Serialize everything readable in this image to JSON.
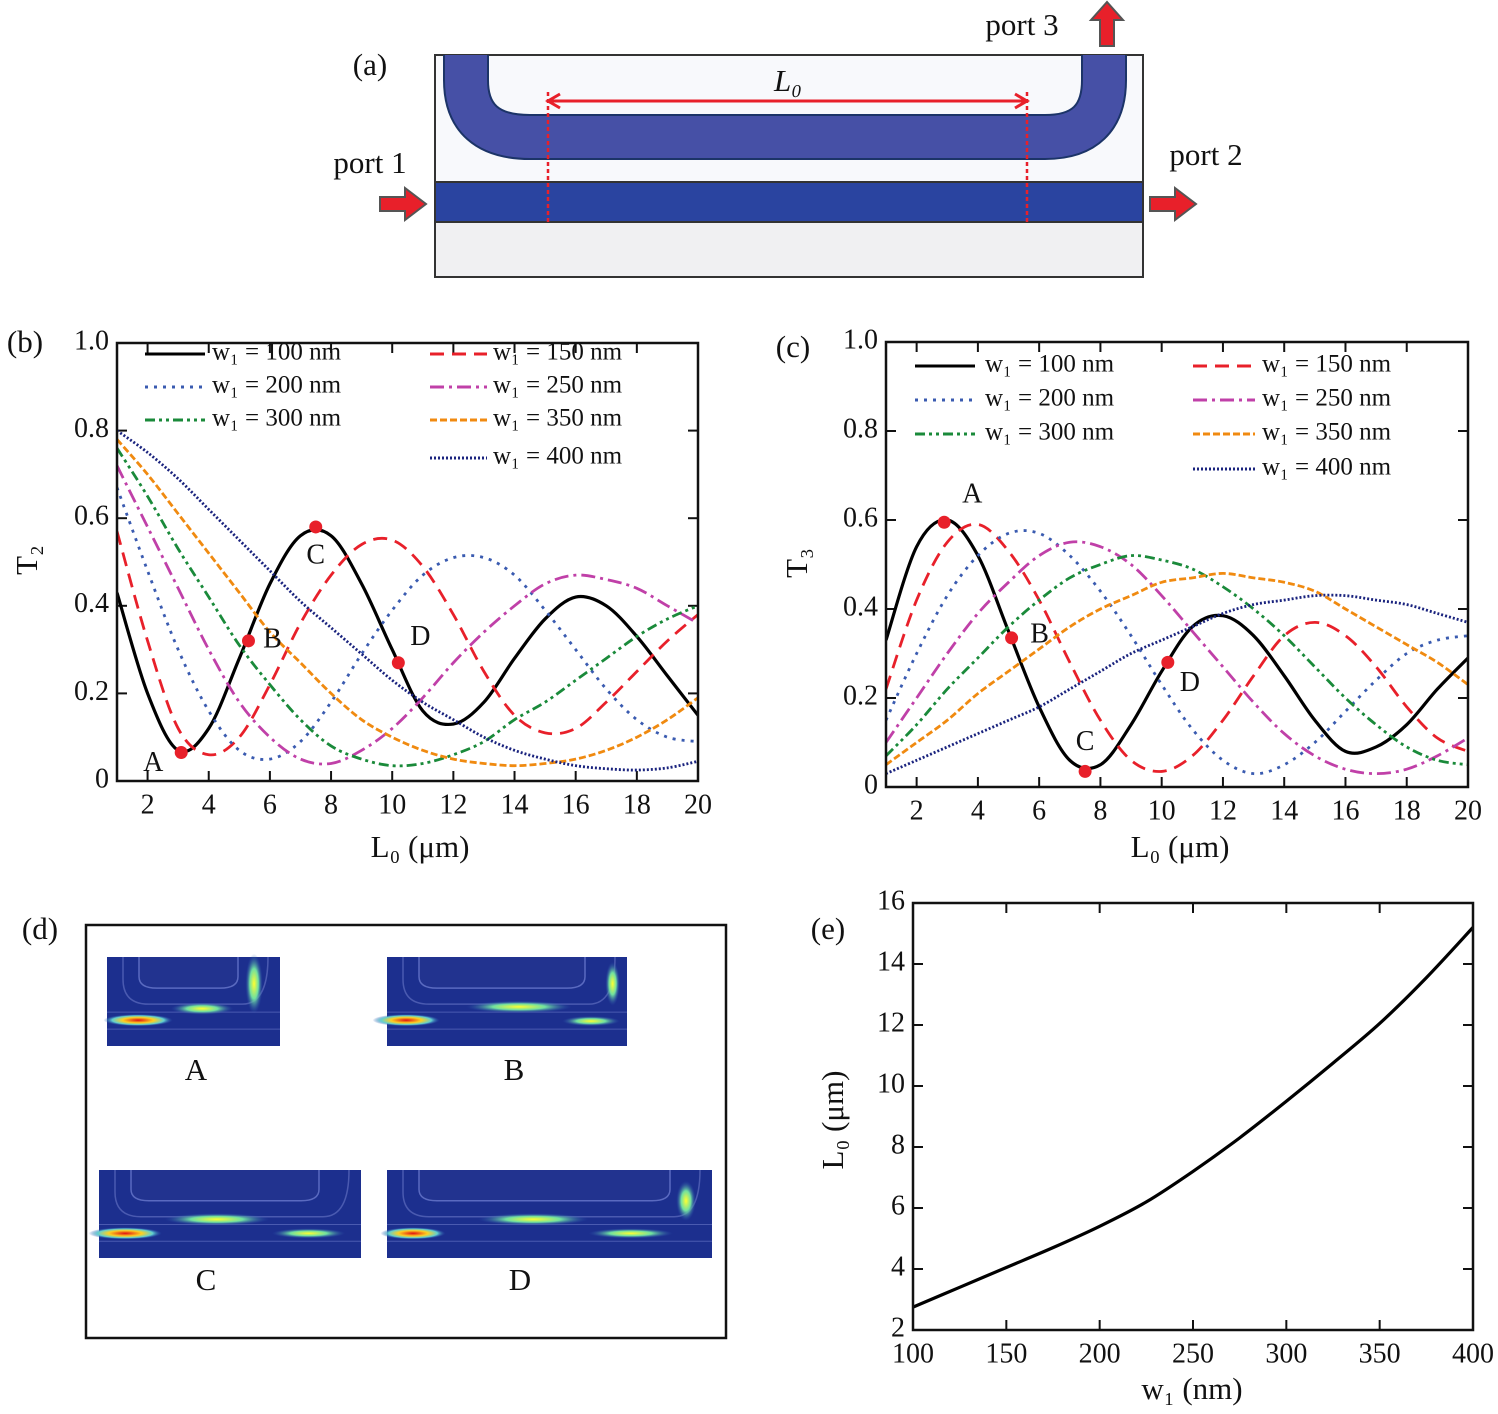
{
  "diagram": {
    "label": "(a)",
    "length_label": "L₀",
    "ports": [
      "port 1",
      "port 2",
      "port 3"
    ]
  },
  "fields": {
    "label": "(d)",
    "captions": [
      "A",
      "B",
      "C",
      "D"
    ]
  },
  "chart_data": [
    {
      "type": "line",
      "panel_label": "(b)",
      "ylabel": "T₂",
      "xlabel": "L₀ (μm)",
      "xlim": [
        1,
        20
      ],
      "ylim": [
        0,
        1
      ],
      "xticks": [
        2,
        4,
        6,
        8,
        10,
        12,
        14,
        16,
        18,
        20
      ],
      "yticks": [
        0,
        0.2,
        0.4,
        0.6,
        0.8,
        {
          "value": 1,
          "label": "1.0"
        }
      ],
      "x": [
        1,
        2,
        3,
        4,
        5,
        6,
        7,
        8,
        9,
        10,
        11,
        12,
        13,
        14,
        15,
        16,
        17,
        18,
        19,
        20
      ],
      "series": [
        {
          "name": "w₁ = 100 nm",
          "color": "#000000",
          "values": [
            0.43,
            0.2,
            0.07,
            0.12,
            0.28,
            0.45,
            0.56,
            0.56,
            0.45,
            0.3,
            0.16,
            0.13,
            0.18,
            0.28,
            0.37,
            0.42,
            0.4,
            0.33,
            0.24,
            0.15
          ]
        },
        {
          "name": "w₁ = 150 nm",
          "color": "#e8202a",
          "values": [
            0.57,
            0.32,
            0.12,
            0.06,
            0.1,
            0.22,
            0.36,
            0.47,
            0.54,
            0.55,
            0.49,
            0.38,
            0.25,
            0.15,
            0.11,
            0.12,
            0.18,
            0.25,
            0.32,
            0.38
          ]
        },
        {
          "name": "w₁ = 200 nm",
          "color": "#3a5bb0",
          "values": [
            0.67,
            0.48,
            0.3,
            0.16,
            0.07,
            0.05,
            0.09,
            0.18,
            0.29,
            0.39,
            0.47,
            0.51,
            0.51,
            0.47,
            0.39,
            0.3,
            0.21,
            0.14,
            0.1,
            0.09
          ]
        },
        {
          "name": "w₁ = 250 nm",
          "color": "#c040a8",
          "values": [
            0.72,
            0.58,
            0.44,
            0.3,
            0.18,
            0.1,
            0.05,
            0.04,
            0.07,
            0.12,
            0.19,
            0.27,
            0.34,
            0.4,
            0.45,
            0.47,
            0.46,
            0.44,
            0.4,
            0.36
          ]
        },
        {
          "name": "w₁ = 300 nm",
          "color": "#1a8a3a",
          "values": [
            0.76,
            0.65,
            0.53,
            0.42,
            0.31,
            0.22,
            0.14,
            0.08,
            0.05,
            0.035,
            0.04,
            0.06,
            0.09,
            0.14,
            0.18,
            0.23,
            0.28,
            0.33,
            0.37,
            0.4
          ]
        },
        {
          "name": "w₁ = 350 nm",
          "color": "#f08a10",
          "values": [
            0.78,
            0.7,
            0.61,
            0.52,
            0.43,
            0.34,
            0.27,
            0.2,
            0.14,
            0.1,
            0.07,
            0.05,
            0.04,
            0.035,
            0.04,
            0.05,
            0.07,
            0.1,
            0.14,
            0.19
          ]
        },
        {
          "name": "w₁ = 400 nm",
          "color": "#1a237e",
          "values": [
            0.8,
            0.75,
            0.69,
            0.62,
            0.55,
            0.48,
            0.41,
            0.35,
            0.29,
            0.23,
            0.18,
            0.14,
            0.1,
            0.07,
            0.05,
            0.035,
            0.028,
            0.025,
            0.03,
            0.045
          ]
        }
      ],
      "points": [
        {
          "label": "A",
          "x": 3.1,
          "y": 0.065
        },
        {
          "label": "B",
          "x": 5.3,
          "y": 0.32
        },
        {
          "label": "C",
          "x": 7.5,
          "y": 0.58
        },
        {
          "label": "D",
          "x": 10.2,
          "y": 0.27
        }
      ],
      "point_color": "#e8202a"
    },
    {
      "type": "line",
      "panel_label": "(c)",
      "ylabel": "T₃",
      "xlabel": "L₀ (μm)",
      "xlim": [
        1,
        20
      ],
      "ylim": [
        0,
        1
      ],
      "xticks": [
        2,
        4,
        6,
        8,
        10,
        12,
        14,
        16,
        18,
        20
      ],
      "yticks": [
        0,
        0.2,
        0.4,
        0.6,
        0.8,
        {
          "value": 1,
          "label": "1.0"
        }
      ],
      "x": [
        1,
        2,
        3,
        4,
        5,
        6,
        7,
        8,
        9,
        10,
        11,
        12,
        13,
        14,
        15,
        16,
        17,
        18,
        19,
        20
      ],
      "series": [
        {
          "name": "w₁ = 100 nm",
          "color": "#000000",
          "values": [
            0.33,
            0.54,
            0.6,
            0.52,
            0.35,
            0.18,
            0.06,
            0.05,
            0.14,
            0.26,
            0.36,
            0.385,
            0.34,
            0.25,
            0.15,
            0.08,
            0.09,
            0.14,
            0.22,
            0.29
          ]
        },
        {
          "name": "w₁ = 150 nm",
          "color": "#e8202a",
          "values": [
            0.22,
            0.42,
            0.55,
            0.59,
            0.53,
            0.42,
            0.28,
            0.15,
            0.06,
            0.035,
            0.07,
            0.15,
            0.25,
            0.34,
            0.37,
            0.34,
            0.27,
            0.18,
            0.11,
            0.08
          ]
        },
        {
          "name": "w₁ = 200 nm",
          "color": "#3a5bb0",
          "values": [
            0.15,
            0.3,
            0.43,
            0.52,
            0.57,
            0.57,
            0.52,
            0.44,
            0.34,
            0.23,
            0.13,
            0.06,
            0.03,
            0.05,
            0.1,
            0.17,
            0.24,
            0.3,
            0.33,
            0.34
          ]
        },
        {
          "name": "w₁ = 250 nm",
          "color": "#c040a8",
          "values": [
            0.1,
            0.2,
            0.3,
            0.39,
            0.46,
            0.52,
            0.55,
            0.54,
            0.5,
            0.43,
            0.35,
            0.27,
            0.19,
            0.12,
            0.07,
            0.04,
            0.03,
            0.04,
            0.07,
            0.11
          ]
        },
        {
          "name": "w₁ = 300 nm",
          "color": "#1a8a3a",
          "values": [
            0.07,
            0.14,
            0.22,
            0.29,
            0.36,
            0.42,
            0.47,
            0.5,
            0.52,
            0.51,
            0.49,
            0.45,
            0.4,
            0.34,
            0.27,
            0.2,
            0.14,
            0.09,
            0.06,
            0.05
          ]
        },
        {
          "name": "w₁ = 350 nm",
          "color": "#f08a10",
          "values": [
            0.05,
            0.1,
            0.15,
            0.21,
            0.26,
            0.31,
            0.36,
            0.4,
            0.43,
            0.46,
            0.47,
            0.48,
            0.47,
            0.46,
            0.44,
            0.4,
            0.36,
            0.32,
            0.28,
            0.23
          ]
        },
        {
          "name": "w₁ = 400 nm",
          "color": "#1a237e",
          "values": [
            0.03,
            0.06,
            0.09,
            0.12,
            0.15,
            0.18,
            0.22,
            0.26,
            0.3,
            0.33,
            0.36,
            0.39,
            0.41,
            0.42,
            0.43,
            0.43,
            0.42,
            0.41,
            0.39,
            0.37
          ]
        }
      ],
      "points": [
        {
          "label": "A",
          "x": 2.9,
          "y": 0.595
        },
        {
          "label": "B",
          "x": 5.1,
          "y": 0.335
        },
        {
          "label": "C",
          "x": 7.5,
          "y": 0.035
        },
        {
          "label": "D",
          "x": 10.2,
          "y": 0.28
        }
      ],
      "point_color": "#e8202a"
    },
    {
      "type": "line",
      "panel_label": "(e)",
      "ylabel": "L₀ (μm)",
      "xlabel": "w₁ (nm)",
      "xlim": [
        100,
        400
      ],
      "ylim": [
        2,
        16
      ],
      "xticks": [
        100,
        150,
        200,
        250,
        300,
        350,
        400
      ],
      "yticks": [
        2,
        4,
        6,
        8,
        10,
        12,
        14,
        16
      ],
      "x": [
        100,
        125,
        150,
        175,
        200,
        225,
        250,
        275,
        300,
        325,
        350,
        375,
        400
      ],
      "values": [
        2.75,
        3.4,
        4.05,
        4.7,
        5.4,
        6.2,
        7.2,
        8.3,
        9.5,
        10.75,
        12.05,
        13.55,
        15.2
      ],
      "color": "#000000"
    }
  ]
}
